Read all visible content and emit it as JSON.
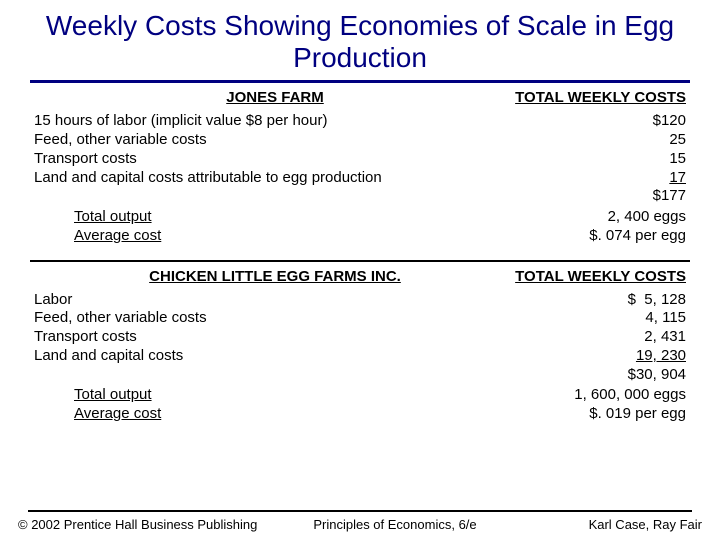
{
  "title": "Weekly Costs Showing Economies of Scale in Egg Production",
  "colors": {
    "title": "#000080",
    "text": "#000000",
    "rule": "#000080"
  },
  "section1": {
    "header_left": "JONES FARM",
    "header_right": "TOTAL WEEKLY COSTS",
    "rows": [
      {
        "label": "15 hours of labor (implicit value $8 per hour)",
        "value": "$120"
      },
      {
        "label": "Feed, other variable costs",
        "value": "25"
      },
      {
        "label": "Transport costs",
        "value": "15"
      },
      {
        "label": "Land and capital costs attributable to egg production",
        "value": "17",
        "underline_value": true
      },
      {
        "label": "",
        "value": "$177"
      }
    ],
    "summary": [
      {
        "label": "Total output",
        "value": "2, 400 eggs"
      },
      {
        "label": "Average cost",
        "value": "$. 074 per egg"
      }
    ]
  },
  "section2": {
    "header_left": "CHICKEN LITTLE EGG FARMS INC.",
    "header_right": "TOTAL WEEKLY COSTS",
    "rows": [
      {
        "label": "Labor",
        "value": "$  5, 128"
      },
      {
        "label": "Feed, other variable costs",
        "value": "4, 115"
      },
      {
        "label": "Transport costs",
        "value": "2, 431"
      },
      {
        "label": "Land and capital costs",
        "value": "19, 230",
        "underline_value": true
      },
      {
        "label": "",
        "value": "$30, 904"
      }
    ],
    "summary": [
      {
        "label": "Total output",
        "value": "1, 600, 000 eggs"
      },
      {
        "label": "Average cost",
        "value": "$. 019 per egg"
      }
    ]
  },
  "footer": {
    "left": "© 2002 Prentice Hall Business Publishing",
    "center": "Principles of Economics, 6/e",
    "right": "Karl Case, Ray Fair"
  }
}
